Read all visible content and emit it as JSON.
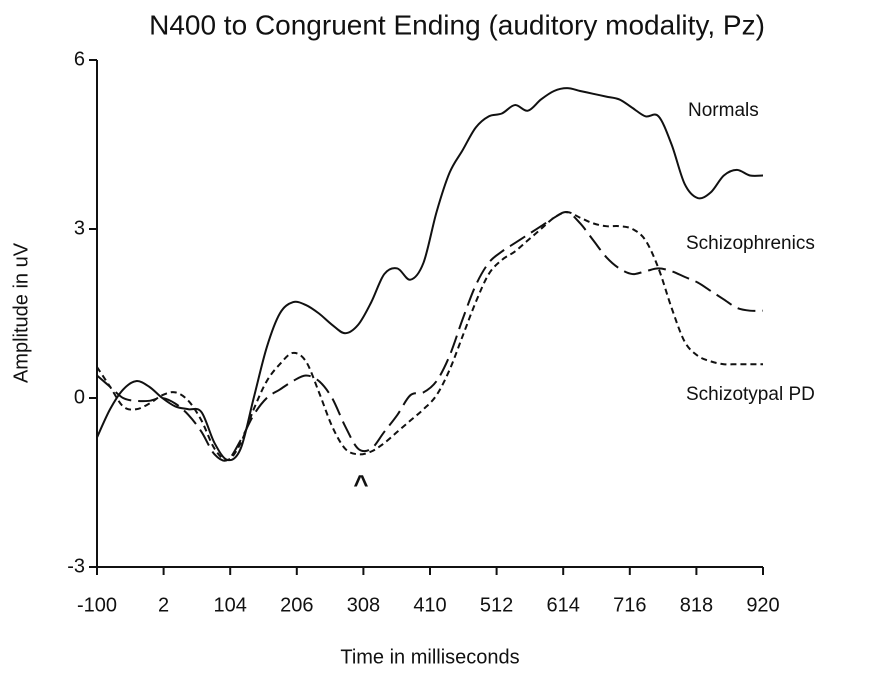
{
  "chart_data": {
    "type": "line",
    "title": "N400 to Congruent Ending (auditory modality, Pz)",
    "x_label": "Time in milliseconds",
    "y_label": "Amplitude in uV",
    "x": [
      -100,
      -80,
      -60,
      -40,
      -20,
      0,
      20,
      40,
      60,
      80,
      100,
      120,
      140,
      160,
      180,
      200,
      220,
      240,
      260,
      280,
      300,
      320,
      340,
      360,
      380,
      400,
      420,
      440,
      460,
      480,
      500,
      520,
      540,
      560,
      580,
      600,
      620,
      640,
      660,
      680,
      700,
      720,
      740,
      760,
      780,
      800,
      820,
      840,
      860,
      880,
      900,
      920
    ],
    "series": [
      {
        "name": "Normals",
        "color": "#111111",
        "line_style": "solid",
        "values": [
          -0.7,
          -0.2,
          0.15,
          0.3,
          0.2,
          0.0,
          -0.15,
          -0.2,
          -0.25,
          -0.8,
          -1.1,
          -0.9,
          0.0,
          0.9,
          1.5,
          1.7,
          1.65,
          1.5,
          1.3,
          1.15,
          1.3,
          1.7,
          2.2,
          2.3,
          2.1,
          2.4,
          3.3,
          4.0,
          4.4,
          4.8,
          5.0,
          5.05,
          5.2,
          5.1,
          5.3,
          5.45,
          5.5,
          5.45,
          5.4,
          5.35,
          5.3,
          5.15,
          5.0,
          5.0,
          4.5,
          3.8,
          3.55,
          3.65,
          3.95,
          4.05,
          3.95,
          3.95
        ]
      },
      {
        "name": "Schizophrenics",
        "color": "#111111",
        "line_style": "long-dash",
        "values": [
          0.4,
          0.2,
          0.0,
          -0.05,
          -0.05,
          0.0,
          -0.1,
          -0.3,
          -0.6,
          -1.0,
          -1.1,
          -0.75,
          -0.3,
          0.0,
          0.15,
          0.3,
          0.4,
          0.3,
          0.0,
          -0.5,
          -0.9,
          -0.9,
          -0.6,
          -0.3,
          0.05,
          0.1,
          0.3,
          0.75,
          1.4,
          2.0,
          2.4,
          2.6,
          2.75,
          2.9,
          3.05,
          3.2,
          3.3,
          3.1,
          2.8,
          2.5,
          2.3,
          2.2,
          2.25,
          2.3,
          2.25,
          2.15,
          2.05,
          1.9,
          1.75,
          1.6,
          1.55,
          1.55
        ]
      },
      {
        "name": "Schizotypal PD",
        "color": "#111111",
        "line_style": "short-dash",
        "values": [
          0.55,
          0.2,
          -0.15,
          -0.2,
          -0.1,
          0.05,
          0.1,
          -0.05,
          -0.4,
          -0.9,
          -1.1,
          -0.8,
          -0.2,
          0.3,
          0.6,
          0.8,
          0.65,
          0.1,
          -0.5,
          -0.9,
          -1.0,
          -0.95,
          -0.8,
          -0.6,
          -0.4,
          -0.2,
          0.05,
          0.5,
          1.1,
          1.7,
          2.2,
          2.45,
          2.6,
          2.8,
          3.0,
          3.2,
          3.3,
          3.2,
          3.1,
          3.05,
          3.05,
          3.0,
          2.8,
          2.3,
          1.6,
          1.0,
          0.75,
          0.65,
          0.6,
          0.6,
          0.6,
          0.6
        ]
      }
    ],
    "annotations": [
      "^"
    ],
    "xlim": [
      -100,
      920
    ],
    "xticks": [
      -100,
      2,
      104,
      206,
      308,
      410,
      512,
      614,
      716,
      818,
      920
    ],
    "ylim": [
      -3,
      6
    ],
    "yticks": [
      -3,
      0,
      3,
      6
    ],
    "grid": false
  }
}
